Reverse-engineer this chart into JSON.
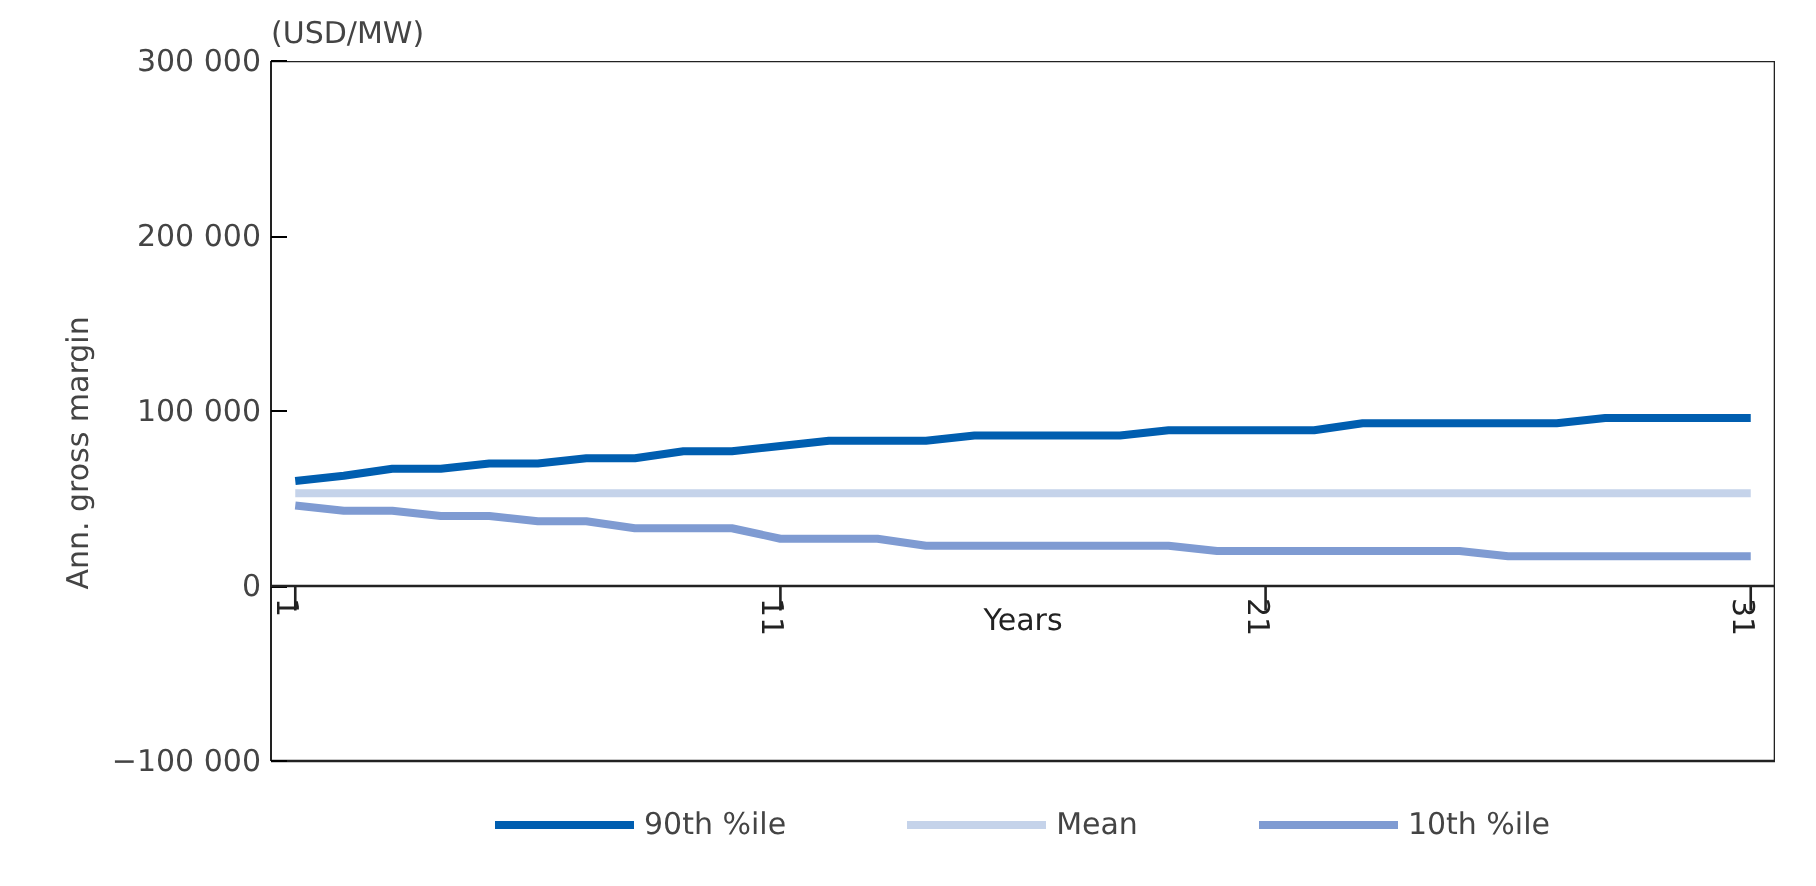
{
  "chart_data": {
    "type": "line",
    "subtitle": "(USD/MW)",
    "ylabel": "Ann. gross margin",
    "xlabel": "Years",
    "x": [
      1,
      2,
      3,
      4,
      5,
      6,
      7,
      8,
      9,
      10,
      11,
      12,
      13,
      14,
      15,
      16,
      17,
      18,
      19,
      20,
      21,
      22,
      23,
      24,
      25,
      26,
      27,
      28,
      29,
      30,
      31
    ],
    "series": [
      {
        "name": "90th %ile",
        "color": "#005eb0",
        "values": [
          60000,
          63000,
          67000,
          67000,
          70000,
          70000,
          73000,
          73000,
          77000,
          77000,
          80000,
          83000,
          83000,
          83000,
          86000,
          86000,
          86000,
          86000,
          89000,
          89000,
          89000,
          89000,
          93000,
          93000,
          93000,
          93000,
          93000,
          96000,
          96000,
          96000,
          96000
        ]
      },
      {
        "name": "Mean",
        "color": "#c5d3ea",
        "values": [
          53000,
          53000,
          53000,
          53000,
          53000,
          53000,
          53000,
          53000,
          53000,
          53000,
          53000,
          53000,
          53000,
          53000,
          53000,
          53000,
          53000,
          53000,
          53000,
          53000,
          53000,
          53000,
          53000,
          53000,
          53000,
          53000,
          53000,
          53000,
          53000,
          53000,
          53000
        ]
      },
      {
        "name": "10th %ile",
        "color": "#7f9bd2",
        "values": [
          46000,
          43000,
          43000,
          40000,
          40000,
          37000,
          37000,
          33000,
          33000,
          33000,
          27000,
          27000,
          27000,
          23000,
          23000,
          23000,
          23000,
          23000,
          23000,
          20000,
          20000,
          20000,
          20000,
          20000,
          20000,
          17000,
          17000,
          17000,
          17000,
          17000,
          17000
        ]
      }
    ],
    "xlim": [
      0.5,
      31.5
    ],
    "xticks": [
      1,
      11,
      21,
      31
    ],
    "ylim": [
      -100000,
      300000
    ],
    "yticks": [
      {
        "value": -100000,
        "label": "−100 000"
      },
      {
        "value": 0,
        "label": "0"
      },
      {
        "value": 100000,
        "label": "100 000"
      },
      {
        "value": 200000,
        "label": "200 000"
      },
      {
        "value": 300000,
        "label": "300 000"
      }
    ],
    "grid": false,
    "legend": "bottom",
    "line_style": "solid",
    "marker": "none"
  }
}
